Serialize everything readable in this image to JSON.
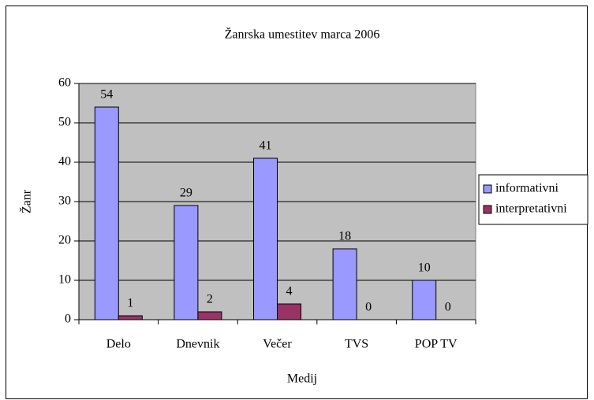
{
  "chart_data": {
    "type": "bar",
    "title": "Žanrska umestitev marca 2006",
    "x_label": "Medij",
    "y_label": "Žanr",
    "categories": [
      "Delo",
      "Dnevnik",
      "Večer",
      "TVS",
      "POP TV"
    ],
    "series": [
      {
        "name": "informativni",
        "color": "#9999ff",
        "values": [
          54,
          29,
          41,
          18,
          10
        ]
      },
      {
        "name": "interpretativni",
        "color": "#993366",
        "values": [
          1,
          2,
          4,
          0,
          0
        ]
      }
    ],
    "ylim": [
      0,
      60
    ],
    "yticks": [
      0,
      10,
      20,
      30,
      40,
      50,
      60
    ],
    "grid": true,
    "legend": "right",
    "plot_background": "#c0c0c0"
  }
}
